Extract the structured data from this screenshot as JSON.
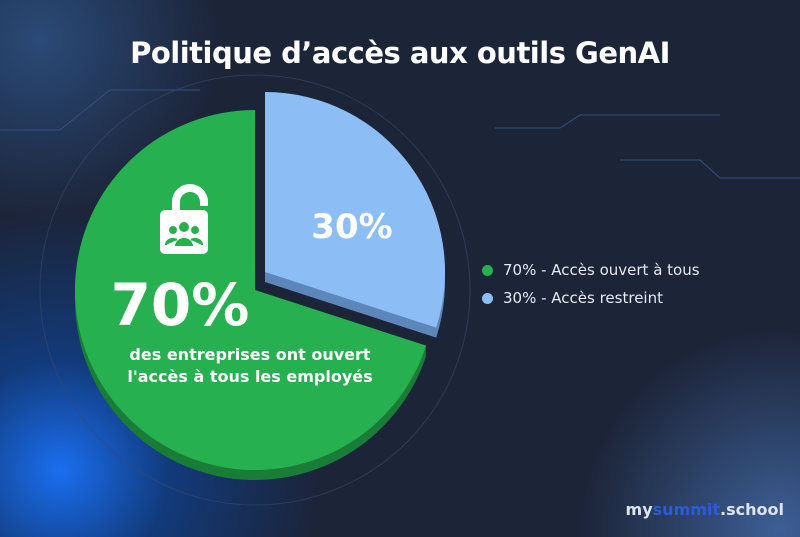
{
  "title": "Politique d’accès aux outils GenAI",
  "chart_data": {
    "type": "pie",
    "title": "Politique d’accès aux outils GenAI",
    "slices": [
      {
        "label": "70% - Accès ouvert à tous",
        "value": 70,
        "color": "#27b04f",
        "display": "70%",
        "caption": [
          "des entreprises ont ouvert",
          "l'accès à tous les employés"
        ]
      },
      {
        "label": "30% - Accès restreint",
        "value": 30,
        "color": "#8dbdf5",
        "display": "30%"
      }
    ],
    "legend_position": "right"
  },
  "icon": "unlocked-padlock-group-icon",
  "logo": {
    "pre": "my",
    "mid": "summit",
    "post": ".school"
  }
}
